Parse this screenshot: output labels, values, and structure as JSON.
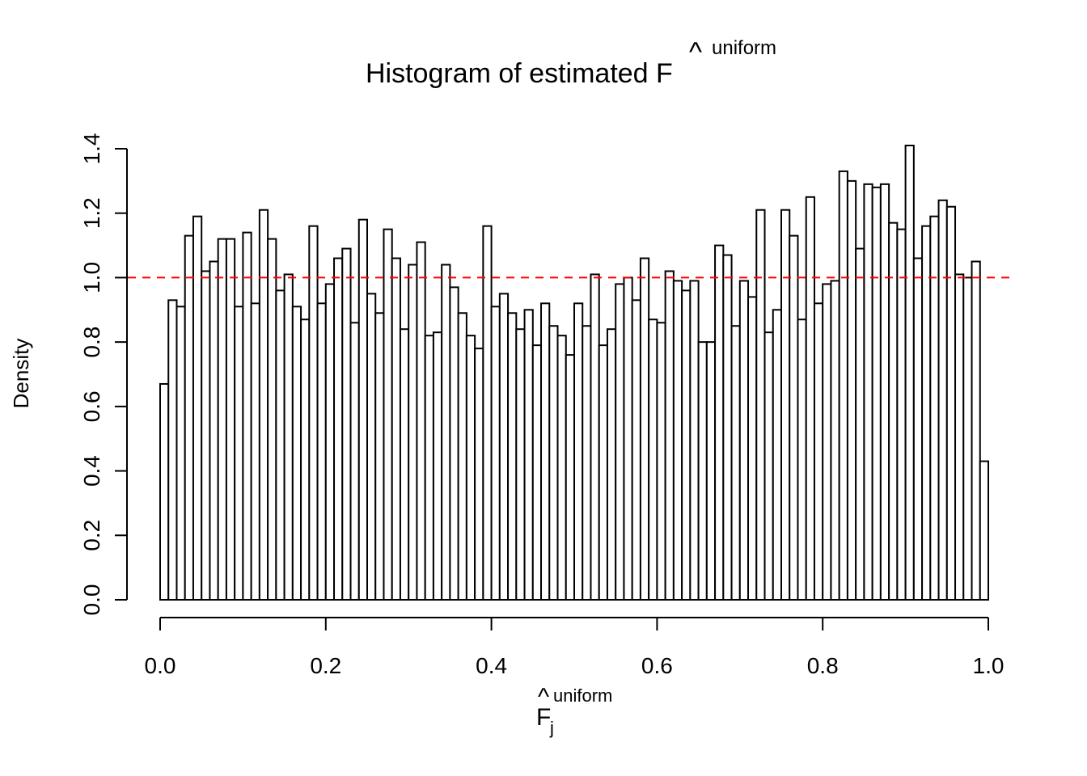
{
  "chart_data": {
    "type": "bar",
    "title": {
      "text": "Histogram of estimated F",
      "hat": "^",
      "superscript": "uniform"
    },
    "xlabel": {
      "text": "F",
      "hat": "^",
      "subscript": "j",
      "superscript": "uniform"
    },
    "ylabel": "Density",
    "xlim": [
      0.0,
      1.0
    ],
    "ylim": [
      0.0,
      1.4
    ],
    "x_ticks": [
      "0.0",
      "0.2",
      "0.4",
      "0.6",
      "0.8",
      "1.0"
    ],
    "y_ticks": [
      "0.0",
      "0.2",
      "0.4",
      "0.6",
      "0.8",
      "1.0",
      "1.2",
      "1.4"
    ],
    "bin_width": 0.01,
    "bins_start": 0.0,
    "values": [
      0.67,
      0.93,
      0.91,
      1.13,
      1.19,
      1.02,
      1.05,
      1.12,
      1.12,
      0.91,
      1.14,
      0.92,
      1.21,
      1.12,
      0.96,
      1.01,
      0.91,
      0.87,
      1.16,
      0.92,
      0.98,
      1.06,
      1.09,
      0.86,
      1.18,
      0.95,
      0.89,
      1.15,
      1.06,
      0.84,
      1.04,
      1.11,
      0.82,
      0.83,
      1.04,
      0.97,
      0.89,
      0.82,
      0.78,
      1.16,
      0.91,
      0.95,
      0.89,
      0.84,
      0.9,
      0.79,
      0.92,
      0.85,
      0.82,
      0.76,
      0.92,
      0.85,
      1.01,
      0.79,
      0.84,
      0.98,
      1.0,
      0.93,
      1.06,
      0.87,
      0.86,
      1.02,
      0.99,
      0.96,
      0.99,
      0.8,
      0.8,
      1.1,
      1.07,
      0.85,
      0.99,
      0.94,
      1.21,
      0.83,
      0.9,
      1.21,
      1.13,
      0.87,
      1.25,
      0.92,
      0.98,
      0.99,
      1.33,
      1.3,
      1.09,
      1.29,
      1.28,
      1.29,
      1.17,
      1.15,
      1.41,
      1.06,
      1.16,
      1.19,
      1.24,
      1.22,
      1.01,
      1.0,
      1.05,
      0.43
    ],
    "reference_line": {
      "y": 1.0,
      "color": "#ff0000",
      "style": "dashed"
    },
    "bar_fill": "#ffffff",
    "bar_stroke": "#000000",
    "grid": false
  }
}
